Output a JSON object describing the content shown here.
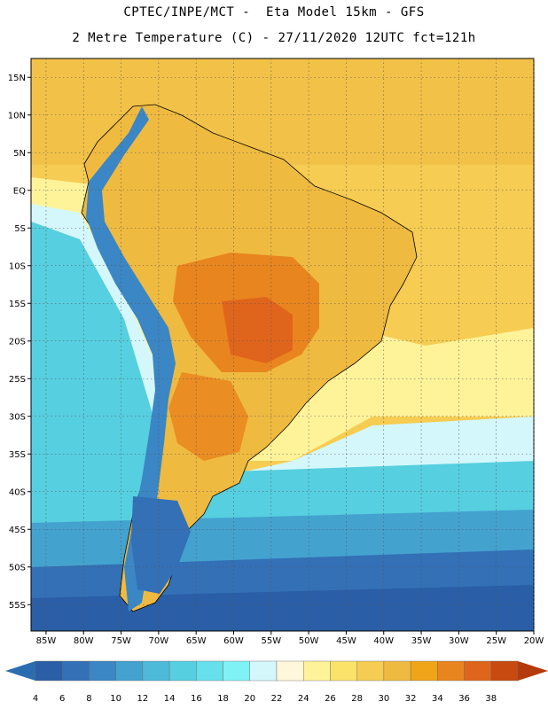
{
  "title_line1": "CPTEC/INPE/MCT -  Eta Model 15km - GFS",
  "title_line2": "2 Metre Temperature (C) - 27/11/2020 12UTC fct=121h",
  "lat_labels": [
    "15N",
    "10N",
    "5N",
    "EQ",
    "5S",
    "10S",
    "15S",
    "20S",
    "25S",
    "30S",
    "35S",
    "40S",
    "45S",
    "50S",
    "55S"
  ],
  "lon_labels": [
    "85W",
    "80W",
    "75W",
    "70W",
    "65W",
    "60W",
    "55W",
    "50W",
    "45W",
    "40W",
    "35W",
    "30W",
    "25W",
    "20W"
  ],
  "colorbar": {
    "labels": [
      "4",
      "6",
      "8",
      "10",
      "12",
      "14",
      "16",
      "18",
      "20",
      "22",
      "24",
      "26",
      "28",
      "30",
      "32",
      "34",
      "36",
      "38"
    ],
    "colors": [
      "#2a5ea6",
      "#3370b6",
      "#3b86c4",
      "#44a2cf",
      "#4cbad8",
      "#56cfe0",
      "#66e0ea",
      "#7ff2f5",
      "#d4f7fb",
      "#fff6dc",
      "#fff39a",
      "#fbe36a",
      "#f6cc52",
      "#efba40",
      "#f0a418",
      "#e9851e",
      "#e0651c",
      "#c84a10"
    ],
    "low_color": "#2c6cb0",
    "high_color": "#b43a0c"
  },
  "map_colors": {
    "ocean_warm": "#f6cc52",
    "ocean_mid": "#fff39a",
    "ocean_cool": "#56cfe0",
    "ocean_cold": "#44a2cf",
    "ocean_coldest": "#2a5ea6",
    "land_warm": "#efba40",
    "land_hot": "#e9851e",
    "land_hottest": "#e0651c",
    "andes": "#3b86c4"
  }
}
